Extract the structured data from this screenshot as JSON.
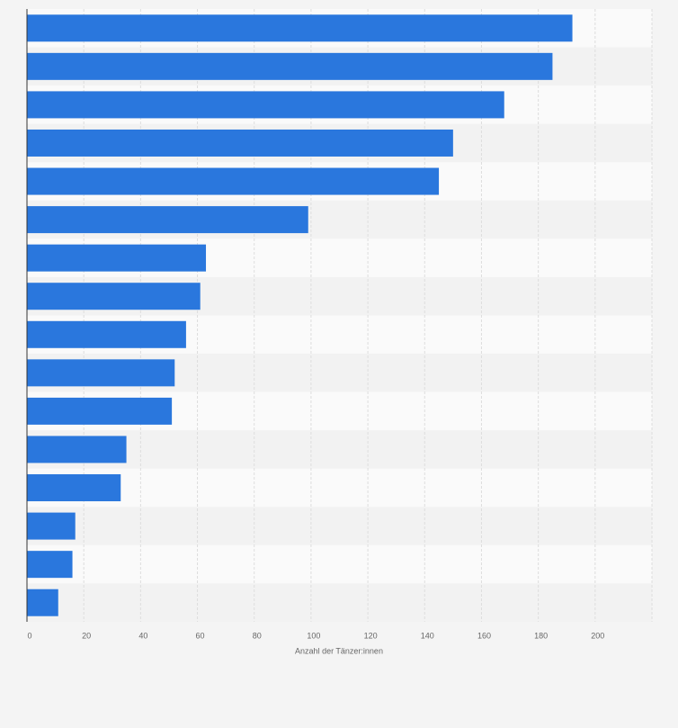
{
  "chart_data": {
    "type": "bar",
    "orientation": "horizontal",
    "categories": [
      null,
      null,
      null,
      null,
      null,
      null,
      null,
      null,
      null,
      null,
      null,
      null,
      null,
      null,
      null,
      null
    ],
    "values": [
      192,
      185,
      168,
      150,
      145,
      99,
      63,
      61,
      56,
      52,
      51,
      35,
      33,
      17,
      16,
      11
    ],
    "color": "#2a77dd",
    "xlabel": "Anzahl der Tänzer:innen",
    "xlim": [
      0,
      220
    ],
    "xticks": [
      0,
      20,
      40,
      60,
      80,
      100,
      120,
      140,
      160,
      180,
      200
    ],
    "grid": true
  }
}
